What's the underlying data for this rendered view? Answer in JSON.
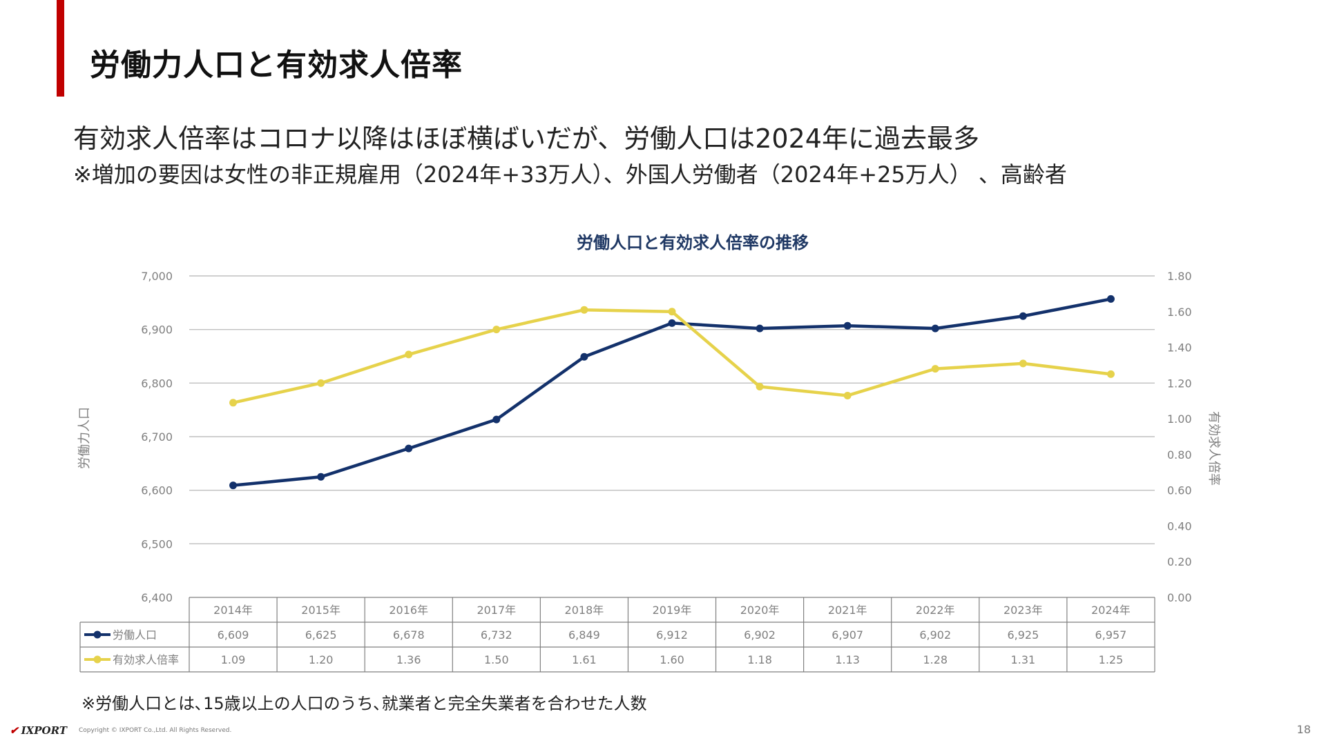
{
  "slide": {
    "title": "労働力人口と有効求人倍率",
    "headline": "有効求人倍率はコロナ以降はほぼ横ばいだが、労働人口は2024年に過去最多",
    "subline": "※増加の要因は女性の非正規雇用（2024年+33万人）、外国人労働者（2024年+25万人） 、高齢者",
    "footnote": "※労働人口とは､15歳以上の人口のうち､就業者と完全失業者を合わせた人数",
    "page_number": "18"
  },
  "footer": {
    "logo_text": "IXPORT",
    "copyright": "Copyright © IXPORT Co.,Ltd. All Rights Reserved."
  },
  "colors": {
    "accent": "#c00000",
    "title_navy": "#1f3864",
    "labor_series": "#13316b",
    "ratio_series": "#e6d24b",
    "gridline": "#bfbfbf",
    "axis_text": "#7f7f7f"
  },
  "chart_data": {
    "type": "line",
    "title": "労働人口と有効求人倍率の推移",
    "categories": [
      "2014年",
      "2015年",
      "2016年",
      "2017年",
      "2018年",
      "2019年",
      "2020年",
      "2021年",
      "2022年",
      "2023年",
      "2024年"
    ],
    "y_left": {
      "label": "労働力人口",
      "ticks": [
        "7,000",
        "6,900",
        "6,800",
        "6,700",
        "6,600",
        "6,500",
        "6,400"
      ],
      "ylim": [
        6400,
        7000
      ]
    },
    "y_right": {
      "label": "有効求人倍率",
      "ticks": [
        "1.80",
        "1.60",
        "1.40",
        "1.20",
        "1.00",
        "0.80",
        "0.60",
        "0.40",
        "0.20",
        "0.00"
      ],
      "ylim": [
        0,
        1.8
      ]
    },
    "grid": true,
    "series": [
      {
        "name": "労働人口",
        "axis": "left",
        "color": "#13316b",
        "values": [
          6609,
          6625,
          6678,
          6732,
          6849,
          6912,
          6902,
          6907,
          6902,
          6925,
          6957
        ],
        "labels": [
          "6,609",
          "6,625",
          "6,678",
          "6,732",
          "6,849",
          "6,912",
          "6,902",
          "6,907",
          "6,902",
          "6,925",
          "6,957"
        ]
      },
      {
        "name": "有効求人倍率",
        "axis": "right",
        "color": "#e6d24b",
        "values": [
          1.09,
          1.2,
          1.36,
          1.5,
          1.61,
          1.6,
          1.18,
          1.13,
          1.28,
          1.31,
          1.25
        ],
        "labels": [
          "1.09",
          "1.20",
          "1.36",
          "1.50",
          "1.61",
          "1.60",
          "1.18",
          "1.13",
          "1.28",
          "1.31",
          "1.25"
        ]
      }
    ],
    "data_table": true
  }
}
